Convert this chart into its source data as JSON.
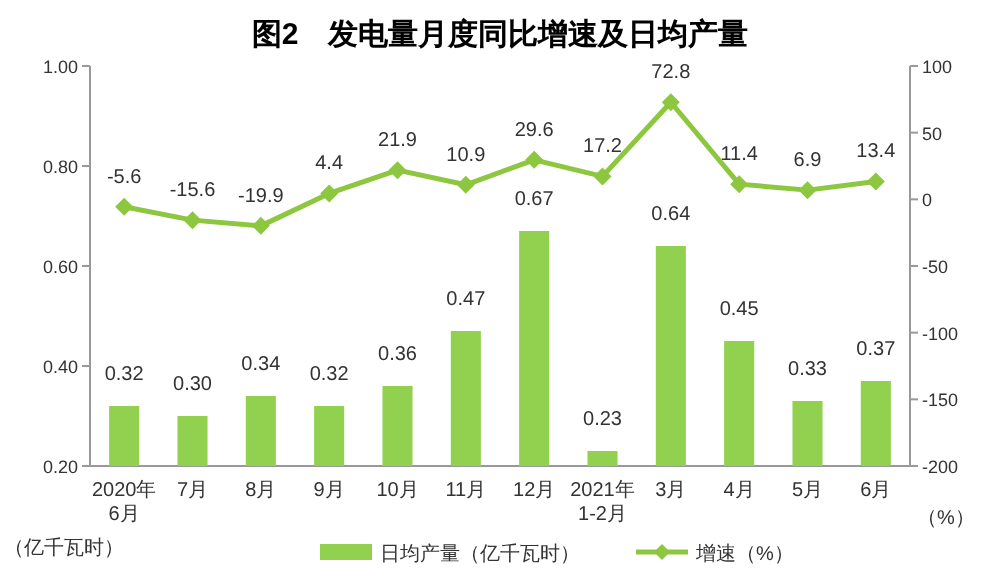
{
  "chart_data": {
    "type": "bar",
    "title": "图2　发电量月度同比增速及日均产量",
    "categories": [
      "2020年\n6月",
      "7月",
      "8月",
      "9月",
      "10月",
      "11月",
      "12月",
      "2021年\n1-2月",
      "3月",
      "4月",
      "5月",
      "6月"
    ],
    "series": [
      {
        "name": "日均产量（亿千瓦时）",
        "color": "#92d050",
        "values": [
          0.32,
          0.3,
          0.34,
          0.32,
          0.36,
          0.47,
          0.67,
          0.23,
          0.64,
          0.45,
          0.33,
          0.37
        ],
        "value_labels": [
          "0.32",
          "0.30",
          "0.34",
          "0.32",
          "0.36",
          "0.47",
          "0.67",
          "0.23",
          "0.64",
          "0.45",
          "0.33",
          "0.37"
        ]
      },
      {
        "name": "增速（%）",
        "type": "line",
        "axis": "y2",
        "color": "#8dc63f",
        "marker": "diamond",
        "values": [
          -5.6,
          -15.6,
          -19.9,
          4.4,
          21.9,
          10.9,
          29.6,
          17.2,
          72.8,
          11.4,
          6.9,
          13.4
        ]
      }
    ],
    "ylabel": "（亿千瓦时）",
    "y2label": "（%）",
    "ylim": [
      0.2,
      1.0
    ],
    "yticks": [
      {
        "value": 0.2,
        "label": "0.20"
      },
      {
        "value": 0.4,
        "label": "0.40"
      },
      {
        "value": 0.6,
        "label": "0.60"
      },
      {
        "value": 0.8,
        "label": "0.80"
      },
      {
        "value": 1.0,
        "label": "1.00"
      }
    ],
    "y2lim": [
      -200,
      100
    ],
    "y2ticks": [
      -200,
      -150,
      -100,
      -50,
      0,
      50,
      100
    ],
    "data_labels": true,
    "grid": false,
    "legend": "bottom"
  }
}
